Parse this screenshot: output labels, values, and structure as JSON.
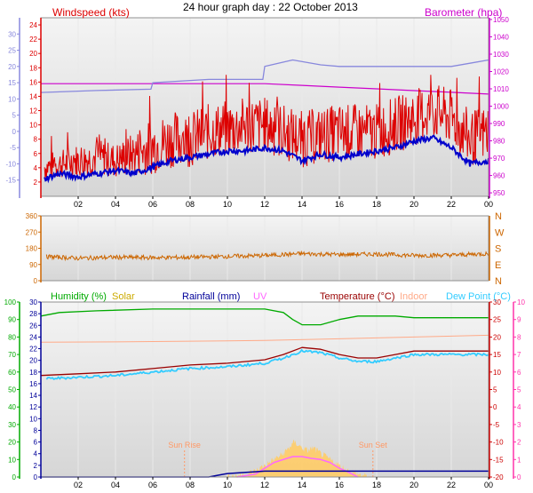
{
  "title": "24 hour graph day : 22 October 2013",
  "colors": {
    "plot_bg_top": "#f4f4f4",
    "plot_bg_bottom": "#d6d6d6",
    "grid": "#e9e9e9",
    "frame": "#909090",
    "wind": "#dd0000",
    "wind_avg": "#0000cc",
    "baro": "#cc00cc",
    "temp": "#990000",
    "humidity": "#00aa00",
    "solar": "#ccaa00",
    "solar_fill": "#ffcc66",
    "rain": "#000099",
    "uv": "#ff66ff",
    "indoor": "#ffaa88",
    "dew": "#33ccff",
    "dir": "#cc6600",
    "temp_tick_color": "#cc0000",
    "uv_tick_color": "#ff33aa",
    "dew_axis_color": "#8888dd",
    "sun_line": "#ff9966"
  },
  "chart_data": [
    {
      "id": "wind_baro",
      "type": "line",
      "title": "",
      "legend": [
        "Windspeed (kts)",
        "Barometer (hpa)"
      ],
      "x_tick_labels": [
        "02",
        "04",
        "06",
        "08",
        "10",
        "12",
        "14",
        "16",
        "18",
        "20",
        "22",
        "00"
      ],
      "x_range_hours": [
        0,
        24
      ],
      "y_wind": {
        "ylabel": "Windspeed (kts)",
        "ylim": [
          0,
          25
        ],
        "ticks": [
          2,
          4,
          6,
          8,
          10,
          12,
          14,
          16,
          18,
          20,
          22,
          24
        ]
      },
      "y_dew": {
        "ylim": [
          -20,
          35
        ],
        "ticks": [
          -15,
          -10,
          -5,
          0,
          5,
          10,
          15,
          20,
          25,
          30
        ]
      },
      "y_baro": {
        "ylabel": "Barometer (hpa)",
        "ylim": [
          948,
          1051
        ],
        "ticks": [
          950,
          960,
          970,
          980,
          990,
          1000,
          1010,
          1020,
          1030,
          1040,
          1050
        ]
      },
      "series": [
        {
          "name": "Windspeed (kts)",
          "color_key": "wind",
          "x": [
            0,
            1,
            2,
            3,
            4,
            5,
            6,
            7,
            8,
            9,
            10,
            11,
            12,
            13,
            14,
            15,
            16,
            17,
            18,
            19,
            20,
            21,
            22,
            23,
            24
          ],
          "y": [
            4,
            4.5,
            5,
            5.5,
            5,
            6,
            7,
            8,
            8,
            9,
            9.5,
            10,
            10,
            9,
            8,
            8.5,
            9,
            9,
            9,
            10,
            11,
            12,
            11,
            8,
            9
          ],
          "spread": [
            2,
            2,
            2.5,
            2.5,
            2.5,
            3,
            4,
            4,
            4,
            4,
            4,
            4,
            4,
            4,
            4,
            4,
            4,
            4,
            4,
            4,
            4,
            4,
            4,
            4,
            4
          ],
          "min": 0,
          "max": 17
        },
        {
          "name": "Average windspeed",
          "color_key": "wind_avg",
          "x": [
            0,
            1,
            2,
            3,
            4,
            5,
            6,
            7,
            8,
            9,
            10,
            11,
            12,
            13,
            14,
            15,
            16,
            17,
            18,
            19,
            20,
            21,
            22,
            23,
            24
          ],
          "y": [
            -15,
            -13,
            -14,
            -13,
            -12,
            -13,
            -11,
            -9,
            -8,
            -7,
            -6,
            -6,
            -5,
            -6,
            -9,
            -7,
            -8,
            -7,
            -6,
            -5,
            -3,
            -2,
            -5,
            -10,
            -9
          ]
        },
        {
          "name": "Barometer (hpa)",
          "color_key": "baro",
          "x": [
            0,
            3,
            6,
            9,
            12,
            14,
            16,
            18,
            20,
            22,
            24
          ],
          "y": [
            1013,
            1013,
            1013,
            1013,
            1013,
            1012,
            1011,
            1010,
            1009,
            1008,
            1007
          ]
        },
        {
          "name": "Dew point",
          "color_key": "dew_axis_color",
          "x": [
            0,
            3,
            5.9,
            6,
            9,
            11.9,
            12,
            13.5,
            15,
            16,
            18,
            20,
            22,
            23,
            24
          ],
          "y": [
            12,
            12.6,
            13,
            15,
            16,
            16,
            20,
            22,
            20.5,
            20,
            20,
            20,
            20,
            21,
            22
          ]
        }
      ]
    },
    {
      "id": "wind_dir",
      "type": "line",
      "title": "",
      "x_range_hours": [
        0,
        24
      ],
      "y_left": {
        "ylim": [
          0,
          360
        ],
        "ticks": [
          0,
          90,
          180,
          270,
          360
        ]
      },
      "y_right_labels": [
        "N",
        "W",
        "S",
        "E",
        "N"
      ],
      "series": [
        {
          "name": "Wind direction",
          "color_key": "dir",
          "x": [
            0,
            2,
            4,
            6,
            8,
            10,
            12,
            14,
            16,
            18,
            20,
            22,
            24
          ],
          "y": [
            135,
            125,
            130,
            128,
            130,
            135,
            140,
            150,
            145,
            148,
            140,
            142,
            150
          ],
          "spread": 12
        }
      ]
    },
    {
      "id": "temp_hum",
      "type": "line",
      "title": "",
      "legend": [
        "Humidity (%)",
        "Solar",
        "Rainfall (mm)",
        "UV",
        "Temperature (°C)",
        "Indoor",
        "Dew Point (°C)"
      ],
      "x_tick_labels": [
        "02",
        "04",
        "06",
        "08",
        "10",
        "12",
        "14",
        "16",
        "18",
        "20",
        "22",
        "00"
      ],
      "x_range_hours": [
        0,
        24
      ],
      "y_humidity": {
        "ylim": [
          0,
          100
        ],
        "ticks": [
          0,
          10,
          20,
          30,
          40,
          50,
          60,
          70,
          80,
          90,
          100
        ]
      },
      "y_rain": {
        "ylim": [
          0,
          30
        ],
        "ticks": [
          0,
          2,
          4,
          6,
          8,
          10,
          12,
          14,
          16,
          18,
          20,
          22,
          24,
          26,
          28,
          30
        ]
      },
      "y_temp": {
        "ylim": [
          -20,
          30
        ],
        "ticks": [
          -20,
          -15,
          -10,
          -5,
          0,
          5,
          10,
          15,
          20,
          25,
          30
        ]
      },
      "y_uv": {
        "ylim": [
          0,
          10
        ],
        "ticks": [
          0,
          1,
          2,
          3,
          4,
          5,
          6,
          7,
          8,
          9,
          10
        ]
      },
      "sun_rise": {
        "label": "Sun Rise",
        "hour": 7.7
      },
      "sun_set": {
        "label": "Sun Set",
        "hour": 17.8
      },
      "series": [
        {
          "name": "Humidity (%)",
          "color_key": "humidity",
          "x": [
            0,
            1,
            3,
            6,
            9,
            12,
            13,
            13.5,
            14,
            15,
            16,
            17,
            18,
            19,
            20,
            21,
            22,
            23,
            24
          ],
          "y": [
            92,
            94,
            95,
            96,
            96,
            96,
            94,
            90,
            87,
            87,
            90,
            92,
            92,
            92,
            91,
            91,
            91,
            91,
            91
          ]
        },
        {
          "name": "Temperature (°C)",
          "color_key": "temp",
          "x": [
            0,
            2,
            4,
            6,
            8,
            10,
            12,
            13,
            14,
            15,
            16,
            17,
            18,
            19,
            20,
            22,
            24
          ],
          "y": [
            9,
            9.5,
            10,
            11,
            12,
            12.5,
            13.5,
            15,
            17,
            16.5,
            15,
            14,
            14,
            15,
            16,
            16,
            16
          ]
        },
        {
          "name": "Indoor",
          "color_key": "indoor",
          "x": [
            0,
            4,
            8,
            12,
            16,
            20,
            24
          ],
          "y": [
            18.5,
            18.6,
            18.8,
            19,
            19.5,
            20,
            20.5
          ]
        },
        {
          "name": "Dew Point (°C)",
          "color_key": "dew",
          "x": [
            0,
            2,
            4,
            6,
            8,
            10,
            12,
            13,
            14,
            15,
            16,
            17,
            18,
            19,
            20,
            22,
            24
          ],
          "y": [
            8,
            8.5,
            9,
            10,
            11,
            11.5,
            12.5,
            14,
            16,
            15.5,
            14,
            13,
            13,
            14,
            15,
            15,
            15
          ]
        },
        {
          "name": "Rainfall (mm)",
          "color_key": "rain",
          "x": [
            0,
            9,
            9.5,
            10,
            11,
            12,
            18,
            24
          ],
          "y": [
            0,
            0,
            0.3,
            0.6,
            0.8,
            1,
            1,
            1
          ]
        },
        {
          "name": "Solar",
          "color_key": "solar_fill",
          "axis": "rain",
          "x": [
            10,
            11,
            11.5,
            12,
            12.5,
            13,
            13.3,
            13.6,
            14,
            14.3,
            14.6,
            15,
            15.5,
            16,
            16.5,
            17,
            17.6
          ],
          "y": [
            0,
            0.5,
            1,
            2,
            3,
            4,
            5,
            6,
            5,
            4.5,
            5,
            4,
            3,
            2,
            1,
            0.5,
            0
          ]
        },
        {
          "name": "UV",
          "color_key": "uv",
          "axis": "rain",
          "x": [
            10.5,
            11.5,
            12,
            12.5,
            13,
            13.5,
            14,
            14.5,
            15,
            15.5,
            16,
            16.5,
            17
          ],
          "y": [
            0,
            0.5,
            1.5,
            2.5,
            3,
            3.5,
            3.5,
            3.2,
            3,
            2.5,
            1.5,
            0.8,
            0
          ]
        }
      ]
    }
  ]
}
